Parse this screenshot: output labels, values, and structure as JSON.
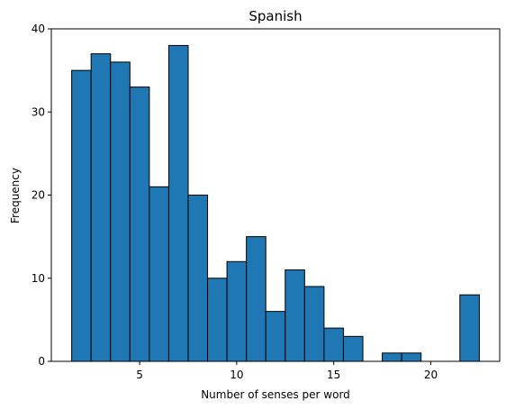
{
  "chart_data": {
    "type": "bar",
    "title": "Spanish",
    "xlabel": "Number of senses per word",
    "ylabel": "Frequency",
    "bin_width": 1,
    "bins": [
      {
        "x0": 1.5,
        "x1": 2.5,
        "count": 35
      },
      {
        "x0": 2.5,
        "x1": 3.5,
        "count": 37
      },
      {
        "x0": 3.5,
        "x1": 4.5,
        "count": 36
      },
      {
        "x0": 4.5,
        "x1": 5.5,
        "count": 33
      },
      {
        "x0": 5.5,
        "x1": 6.5,
        "count": 21
      },
      {
        "x0": 6.5,
        "x1": 7.5,
        "count": 38
      },
      {
        "x0": 7.5,
        "x1": 8.5,
        "count": 20
      },
      {
        "x0": 8.5,
        "x1": 9.5,
        "count": 10
      },
      {
        "x0": 9.5,
        "x1": 10.5,
        "count": 12
      },
      {
        "x0": 10.5,
        "x1": 11.5,
        "count": 15
      },
      {
        "x0": 11.5,
        "x1": 12.5,
        "count": 6
      },
      {
        "x0": 12.5,
        "x1": 13.5,
        "count": 11
      },
      {
        "x0": 13.5,
        "x1": 14.5,
        "count": 9
      },
      {
        "x0": 14.5,
        "x1": 15.5,
        "count": 4
      },
      {
        "x0": 15.5,
        "x1": 16.5,
        "count": 3
      },
      {
        "x0": 16.5,
        "x1": 17.5,
        "count": 0
      },
      {
        "x0": 17.5,
        "x1": 18.5,
        "count": 1
      },
      {
        "x0": 18.5,
        "x1": 19.5,
        "count": 1
      },
      {
        "x0": 19.5,
        "x1": 20.5,
        "count": 0
      },
      {
        "x0": 20.5,
        "x1": 21.5,
        "count": 0
      },
      {
        "x0": 21.5,
        "x1": 22.5,
        "count": 8
      }
    ],
    "xlim": [
      0.45,
      23.55
    ],
    "ylim": [
      0,
      40
    ],
    "xticks": [
      5,
      10,
      15,
      20
    ],
    "yticks": [
      0,
      10,
      20,
      30,
      40
    ],
    "grid": false,
    "legend": "none",
    "bar_color": "#1f77b4",
    "edge_color": "#000000"
  }
}
